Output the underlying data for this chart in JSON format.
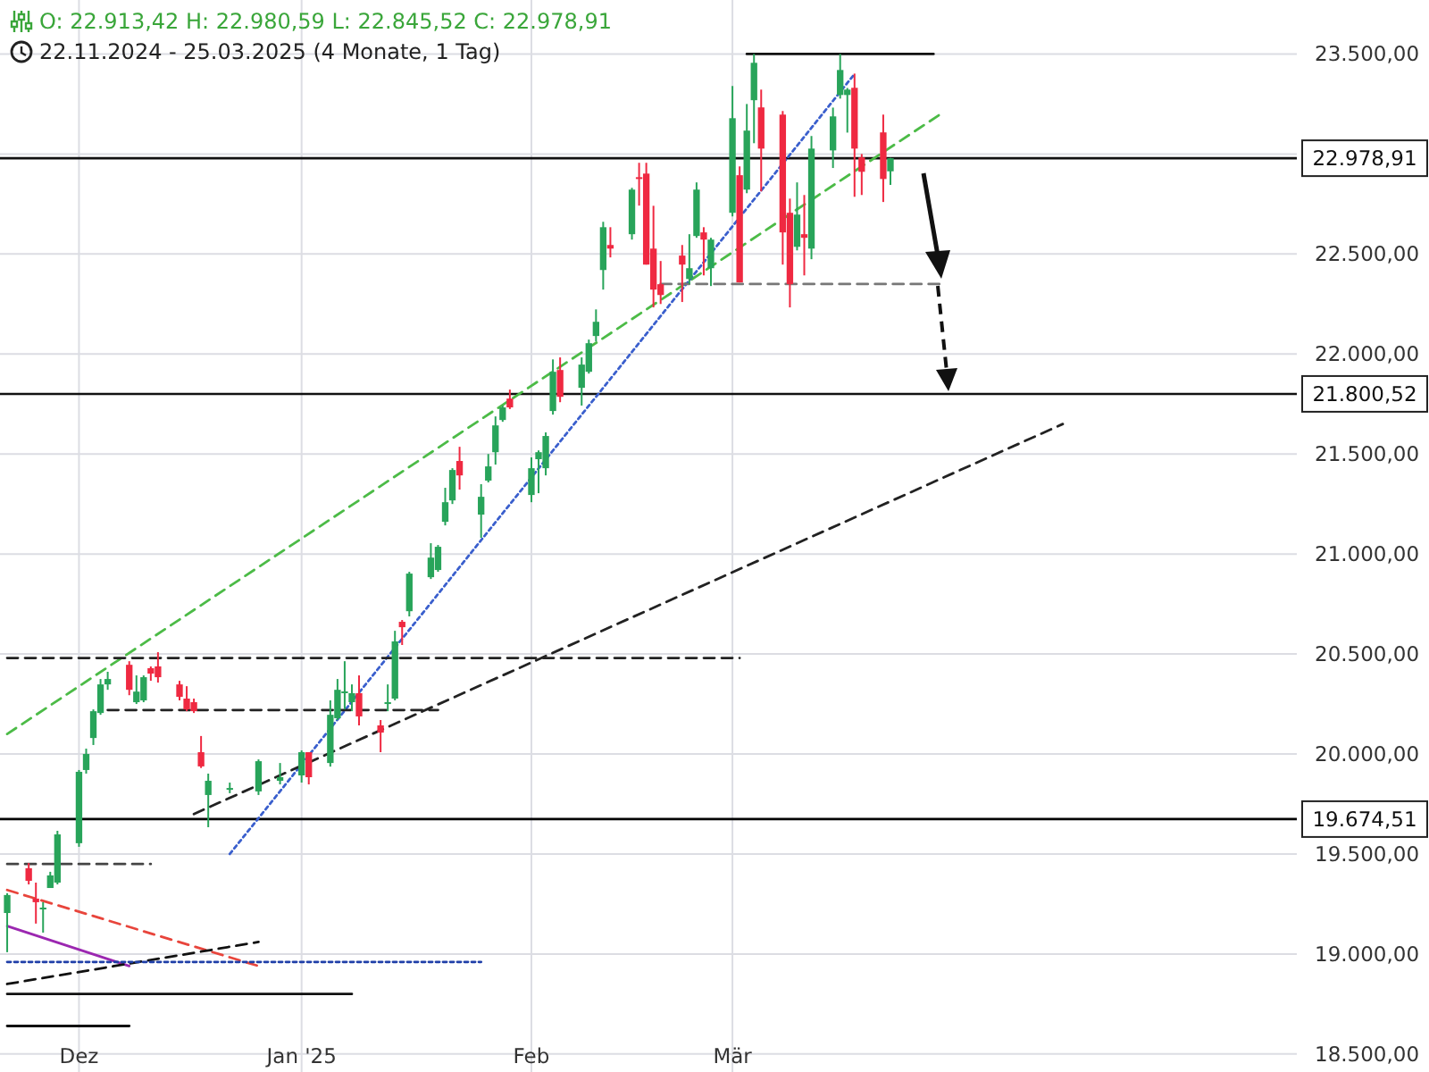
{
  "chart_data": {
    "type": "candlestick",
    "title": "O: 22.913,42  H: 22.980,59  L: 22.845,52  C: 22.978,91",
    "subtitle": "22.11.2024 - 25.03.2025  (4 Monate, 1 Tag)",
    "x": [
      "2024-11-22",
      "2024-11-25",
      "2024-11-26",
      "2024-11-27",
      "2024-11-28",
      "2024-11-29",
      "2024-12-02",
      "2024-12-03",
      "2024-12-04",
      "2024-12-05",
      "2024-12-06",
      "2024-12-09",
      "2024-12-10",
      "2024-12-11",
      "2024-12-12",
      "2024-12-13",
      "2024-12-16",
      "2024-12-17",
      "2024-12-18",
      "2024-12-19",
      "2024-12-20",
      "2024-12-23",
      "2024-12-27",
      "2024-12-30",
      "2025-01-02",
      "2025-01-03",
      "2025-01-06",
      "2025-01-07",
      "2025-01-08",
      "2025-01-09",
      "2025-01-10",
      "2025-01-13",
      "2025-01-14",
      "2025-01-15",
      "2025-01-16",
      "2025-01-17",
      "2025-01-20",
      "2025-01-21",
      "2025-01-22",
      "2025-01-23",
      "2025-01-24",
      "2025-01-27",
      "2025-01-28",
      "2025-01-29",
      "2025-01-30",
      "2025-01-31",
      "2025-02-03",
      "2025-02-04",
      "2025-02-05",
      "2025-02-06",
      "2025-02-07",
      "2025-02-10",
      "2025-02-11",
      "2025-02-12",
      "2025-02-13",
      "2025-02-14",
      "2025-02-17",
      "2025-02-18",
      "2025-02-19",
      "2025-02-20",
      "2025-02-21",
      "2025-02-24",
      "2025-02-25",
      "2025-02-26",
      "2025-02-27",
      "2025-02-28",
      "2025-03-03",
      "2025-03-04",
      "2025-03-05",
      "2025-03-06",
      "2025-03-07",
      "2025-03-10",
      "2025-03-11",
      "2025-03-12",
      "2025-03-13",
      "2025-03-14",
      "2025-03-17",
      "2025-03-18",
      "2025-03-19",
      "2025-03-20",
      "2025-03-21",
      "2025-03-24",
      "2025-03-25"
    ],
    "ohlc": [
      [
        19205,
        19304,
        19009,
        19295
      ],
      [
        19429,
        19455,
        19348,
        19366
      ],
      [
        19277,
        19357,
        19152,
        19259
      ],
      [
        19223,
        19259,
        19107,
        19232
      ],
      [
        19330,
        19411,
        19330,
        19393
      ],
      [
        19357,
        19616,
        19348,
        19598
      ],
      [
        19554,
        19920,
        19536,
        19911
      ],
      [
        19920,
        20027,
        19902,
        20000
      ],
      [
        20080,
        20223,
        20045,
        20214
      ],
      [
        20205,
        20375,
        20196,
        20348
      ],
      [
        20348,
        20411,
        20321,
        20375
      ],
      [
        20446,
        20464,
        20294,
        20321
      ],
      [
        20259,
        20393,
        20250,
        20312
      ],
      [
        20268,
        20393,
        20259,
        20384
      ],
      [
        20429,
        20438,
        20366,
        20402
      ],
      [
        20438,
        20509,
        20357,
        20384
      ],
      [
        20348,
        20366,
        20268,
        20286
      ],
      [
        20277,
        20339,
        20214,
        20223
      ],
      [
        20259,
        20277,
        20205,
        20214
      ],
      [
        20009,
        20090,
        19930,
        19938
      ],
      [
        19795,
        19902,
        19634,
        19866
      ],
      [
        19821,
        19857,
        19804,
        19830
      ],
      [
        19813,
        19973,
        19795,
        19964
      ],
      [
        19866,
        19955,
        19848,
        19884
      ],
      [
        19893,
        20018,
        19857,
        20009
      ],
      [
        20009,
        20009,
        19848,
        19884
      ],
      [
        19955,
        20268,
        19937,
        20196
      ],
      [
        20179,
        20375,
        20170,
        20321
      ],
      [
        20304,
        20464,
        20223,
        20313
      ],
      [
        20259,
        20348,
        20214,
        20304
      ],
      [
        20304,
        20393,
        20143,
        20188
      ],
      [
        20143,
        20170,
        20009,
        20107
      ],
      [
        20250,
        20348,
        20214,
        20259
      ],
      [
        20277,
        20616,
        20268,
        20563
      ],
      [
        20661,
        20670,
        20545,
        20634
      ],
      [
        20714,
        20911,
        20688,
        20902
      ],
      [
        20884,
        21054,
        20875,
        20982
      ],
      [
        20920,
        21045,
        20911,
        21036
      ],
      [
        21161,
        21331,
        21143,
        21259
      ],
      [
        21268,
        21429,
        21250,
        21420
      ],
      [
        21465,
        21536,
        21322,
        21393
      ],
      [
        21197,
        21349,
        21081,
        21286
      ],
      [
        21367,
        21500,
        21358,
        21438
      ],
      [
        21509,
        21688,
        21447,
        21643
      ],
      [
        21670,
        21742,
        21661,
        21733
      ],
      [
        21777,
        21822,
        21725,
        21733
      ],
      [
        21295,
        21483,
        21259,
        21429
      ],
      [
        21474,
        21518,
        21304,
        21509
      ],
      [
        21429,
        21608,
        21393,
        21590
      ],
      [
        21715,
        21973,
        21697,
        21911
      ],
      [
        21920,
        21983,
        21759,
        21786
      ],
      [
        21831,
        21983,
        21742,
        21947
      ],
      [
        21911,
        22072,
        21902,
        22054
      ],
      [
        22090,
        22223,
        22063,
        22161
      ],
      [
        22420,
        22661,
        22322,
        22634
      ],
      [
        22545,
        22634,
        22483,
        22527
      ],
      [
        22599,
        22831,
        22572,
        22822
      ],
      [
        22884,
        22956,
        22742,
        22875
      ],
      [
        22902,
        22956,
        22447,
        22447
      ],
      [
        22527,
        22741,
        22233,
        22322
      ],
      [
        22349,
        22465,
        22250,
        22295
      ],
      [
        22492,
        22545,
        22260,
        22447
      ],
      [
        22375,
        22599,
        22349,
        22429
      ],
      [
        22590,
        22858,
        22581,
        22822
      ],
      [
        22608,
        22634,
        22393,
        22572
      ],
      [
        22429,
        22581,
        22340,
        22572
      ],
      [
        22706,
        23340,
        22688,
        23179
      ],
      [
        22894,
        22938,
        22358,
        22358
      ],
      [
        22822,
        23250,
        22804,
        23117
      ],
      [
        23269,
        23500,
        23054,
        23456
      ],
      [
        23233,
        23322,
        22813,
        23027
      ],
      [
        23197,
        23215,
        22447,
        22608
      ],
      [
        22706,
        22777,
        22233,
        22349
      ],
      [
        22536,
        22858,
        22518,
        22697
      ],
      [
        22599,
        22795,
        22393,
        22581
      ],
      [
        22527,
        23090,
        22474,
        23027
      ],
      [
        23018,
        23232,
        22930,
        23188
      ],
      [
        23295,
        23500,
        23277,
        23420
      ],
      [
        23295,
        23330,
        23107,
        23322
      ],
      [
        23331,
        23402,
        22786,
        23027
      ],
      [
        22983,
        23000,
        22795,
        22911
      ],
      [
        23108,
        23197,
        22760,
        22875
      ],
      [
        22913.42,
        22980.59,
        22845.52,
        22978.91
      ]
    ],
    "colors": [
      "#28a45a",
      "#ef2941",
      "#ef2941",
      "#28a45a",
      "#28a45a",
      "#28a45a",
      "#28a45a",
      "#28a45a",
      "#28a45a",
      "#28a45a",
      "#28a45a",
      "#ef2941",
      "#28a45a",
      "#28a45a",
      "#ef2941",
      "#ef2941",
      "#ef2941",
      "#ef2941",
      "#ef2941",
      "#ef2941",
      "#28a45a",
      "#28a45a",
      "#28a45a",
      "#28a45a",
      "#28a45a",
      "#ef2941",
      "#28a45a",
      "#28a45a",
      "#28a45a",
      "#28a45a",
      "#ef2941",
      "#ef2941",
      "#28a45a",
      "#28a45a",
      "#ef2941",
      "#28a45a",
      "#28a45a",
      "#28a45a",
      "#28a45a",
      "#28a45a",
      "#ef2941",
      "#28a45a",
      "#28a45a",
      "#28a45a",
      "#28a45a",
      "#ef2941",
      "#28a45a",
      "#28a45a",
      "#28a45a",
      "#28a45a",
      "#ef2941",
      "#28a45a",
      "#28a45a",
      "#28a45a",
      "#28a45a",
      "#ef2941",
      "#28a45a",
      "#ef2941",
      "#ef2941",
      "#ef2941",
      "#ef2941",
      "#ef2941",
      "#28a45a",
      "#28a45a",
      "#ef2941",
      "#28a45a",
      "#28a45a",
      "#ef2941",
      "#28a45a",
      "#28a45a",
      "#ef2941",
      "#ef2941",
      "#ef2941",
      "#28a45a",
      "#ef2941",
      "#28a45a",
      "#28a45a",
      "#28a45a",
      "#28a45a",
      "#ef2941",
      "#ef2941",
      "#ef2941",
      "#28a45a"
    ],
    "series": [
      {
        "type": "line",
        "x": [
          "2024-11-22",
          "2025-04-01"
        ],
        "values": [
          20100,
          23200
        ],
        "color": "#4cbb47",
        "line_style": "dashed"
      },
      {
        "type": "line",
        "x": [
          "2024-12-23",
          "2025-03-20"
        ],
        "values": [
          19500,
          23400
        ],
        "color": "#3a5fcd",
        "line_style": "dotted"
      },
      {
        "type": "line",
        "x": [
          "2024-12-18",
          "2025-04-18"
        ],
        "values": [
          19700,
          21650
        ],
        "color": "#222222",
        "line_style": "dashed"
      },
      {
        "type": "line",
        "x": [
          "2024-11-22",
          "2025-03-04"
        ],
        "values": [
          20480,
          20480
        ],
        "color": "#222222",
        "line_style": "dashed"
      },
      {
        "type": "line",
        "x": [
          "2024-12-06",
          "2025-01-21"
        ],
        "values": [
          20220,
          20220
        ],
        "color": "#222222",
        "line_style": "dashed"
      },
      {
        "type": "line",
        "x": [
          "2025-02-21",
          "2025-04-01"
        ],
        "values": [
          22350,
          22350
        ],
        "color": "#777777",
        "line_style": "dashed"
      },
      {
        "type": "line",
        "x": [
          "2025-03-05",
          "2025-03-31"
        ],
        "values": [
          23500,
          23500
        ],
        "color": "#111111",
        "line_style": "solid"
      },
      {
        "type": "line",
        "x": [
          "2024-11-22",
          "2024-12-12"
        ],
        "values": [
          19450,
          19450
        ],
        "color": "#444444",
        "line_style": "dashed"
      },
      {
        "type": "line",
        "x": [
          "2024-11-22",
          "2024-12-27"
        ],
        "values": [
          19320,
          18940
        ],
        "color": "#e8453c",
        "line_style": "dashed"
      },
      {
        "type": "line",
        "x": [
          "2024-11-22",
          "2024-12-09"
        ],
        "values": [
          19140,
          18940
        ],
        "color": "#9b27b0",
        "line_style": "solid"
      },
      {
        "type": "line",
        "x": [
          "2024-11-22",
          "2024-12-27"
        ],
        "values": [
          18850,
          19060
        ],
        "color": "#111111",
        "line_style": "dashed"
      },
      {
        "type": "line",
        "x": [
          "2024-11-22",
          "2025-01-27"
        ],
        "values": [
          18960,
          18960
        ],
        "color": "#1f3fa8",
        "line_style": "dotted"
      },
      {
        "type": "line",
        "x": [
          "2024-11-22",
          "2025-01-09"
        ],
        "values": [
          18800,
          18800
        ],
        "color": "#111111",
        "line_style": "solid"
      },
      {
        "type": "line",
        "x": [
          "2024-11-22",
          "2024-12-09"
        ],
        "values": [
          18640,
          18640
        ],
        "color": "#111111",
        "line_style": "solid"
      }
    ],
    "ref_lines": [
      {
        "axis": "y",
        "value": 22978.91,
        "label": "22.978,91",
        "color": "#111111"
      },
      {
        "axis": "y",
        "value": 21800.52,
        "label": "21.800,52",
        "color": "#111111"
      },
      {
        "axis": "y",
        "value": 19674.51,
        "label": "19.674,51",
        "color": "#000000"
      }
    ],
    "xlim": [
      "2024-11-21",
      "2025-06-08"
    ],
    "xticks": [
      {
        "value": "2024-12-02",
        "label": "Dez"
      },
      {
        "value": "2025-01-02",
        "label": "Jan '25"
      },
      {
        "value": "2025-02-03",
        "label": "Feb"
      },
      {
        "value": "2025-03-03",
        "label": "Mär"
      }
    ],
    "ylim": [
      18410,
      23770
    ],
    "yticks": [
      {
        "value": 18500,
        "label": "18.500,00"
      },
      {
        "value": 19000,
        "label": "19.000,00"
      },
      {
        "value": 19500,
        "label": "19.500,00"
      },
      {
        "value": 20000,
        "label": "20.000,00"
      },
      {
        "value": 20500,
        "label": "20.500,00"
      },
      {
        "value": 21000,
        "label": "21.000,00"
      },
      {
        "value": 21500,
        "label": "21.500,00"
      },
      {
        "value": 22000,
        "label": "22.000,00"
      },
      {
        "value": 22500,
        "label": "22.500,00"
      },
      {
        "value": 23000,
        "label": null
      },
      {
        "value": 23500,
        "label": "23.500,00"
      }
    ],
    "grid": true
  }
}
